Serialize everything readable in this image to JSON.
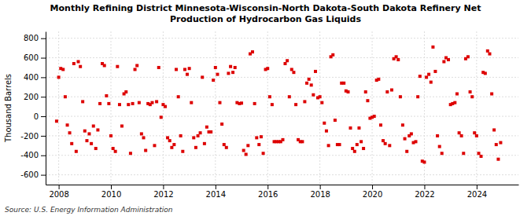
{
  "chart_data": {
    "type": "scatter",
    "title": "Monthly Refining District Minnesota-Wisconsin-North Dakota-South Dakota Refinery Net\nProduction of Hydrocarbon Gas Liquids",
    "ylabel": "Thousand Barrels",
    "source": "Source: U.S. Energy Information Administration",
    "color": "#dd0000",
    "marker": "square",
    "grid": true,
    "xlim": [
      2007.5,
      2025.6
    ],
    "xticks": [
      2008,
      2010,
      2012,
      2014,
      2016,
      2018,
      2020,
      2022,
      2024
    ],
    "ylim": [
      -700,
      870
    ],
    "yticks": [
      -600,
      -400,
      -200,
      0,
      200,
      400,
      600,
      800
    ],
    "x": [
      2007.92,
      2008.0,
      2008.08,
      2008.17,
      2008.25,
      2008.33,
      2008.42,
      2008.5,
      2008.58,
      2008.67,
      2008.75,
      2008.83,
      2008.92,
      2009.0,
      2009.08,
      2009.17,
      2009.25,
      2009.33,
      2009.42,
      2009.5,
      2009.58,
      2009.67,
      2009.75,
      2009.83,
      2009.92,
      2010.0,
      2010.08,
      2010.17,
      2010.25,
      2010.33,
      2010.42,
      2010.5,
      2010.58,
      2010.67,
      2010.75,
      2010.83,
      2010.92,
      2011.0,
      2011.08,
      2011.17,
      2011.25,
      2011.33,
      2011.42,
      2011.5,
      2011.58,
      2011.67,
      2011.75,
      2011.83,
      2011.92,
      2012.0,
      2012.08,
      2012.17,
      2012.25,
      2012.33,
      2012.42,
      2012.5,
      2012.58,
      2012.67,
      2012.75,
      2012.83,
      2012.92,
      2013.0,
      2013.08,
      2013.17,
      2013.25,
      2013.33,
      2013.42,
      2013.5,
      2013.58,
      2013.67,
      2013.75,
      2013.83,
      2013.92,
      2014.0,
      2014.08,
      2014.17,
      2014.25,
      2014.33,
      2014.42,
      2014.5,
      2014.58,
      2014.67,
      2014.75,
      2014.83,
      2014.92,
      2015.0,
      2015.08,
      2015.17,
      2015.25,
      2015.33,
      2015.42,
      2015.5,
      2015.58,
      2015.67,
      2015.75,
      2015.83,
      2015.92,
      2016.0,
      2016.08,
      2016.17,
      2016.25,
      2016.33,
      2016.42,
      2016.5,
      2016.58,
      2016.67,
      2016.75,
      2016.83,
      2016.92,
      2017.0,
      2017.08,
      2017.17,
      2017.25,
      2017.33,
      2017.42,
      2017.5,
      2017.58,
      2017.67,
      2017.75,
      2017.83,
      2017.92,
      2018.0,
      2018.08,
      2018.17,
      2018.25,
      2018.33,
      2018.42,
      2018.5,
      2018.58,
      2018.67,
      2018.75,
      2018.83,
      2018.92,
      2019.0,
      2019.08,
      2019.17,
      2019.25,
      2019.33,
      2019.42,
      2019.5,
      2019.58,
      2019.67,
      2019.75,
      2019.83,
      2019.92,
      2020.0,
      2020.08,
      2020.17,
      2020.25,
      2020.33,
      2020.42,
      2020.5,
      2020.58,
      2020.67,
      2020.75,
      2020.83,
      2020.92,
      2021.0,
      2021.08,
      2021.17,
      2021.25,
      2021.33,
      2021.42,
      2021.5,
      2021.58,
      2021.67,
      2021.75,
      2021.83,
      2021.92,
      2022.0,
      2022.08,
      2022.17,
      2022.25,
      2022.33,
      2022.42,
      2022.5,
      2022.58,
      2022.67,
      2022.75,
      2022.83,
      2022.92,
      2023.0,
      2023.08,
      2023.17,
      2023.25,
      2023.33,
      2023.42,
      2023.5,
      2023.58,
      2023.67,
      2023.75,
      2023.83,
      2023.92,
      2024.0,
      2024.08,
      2024.17,
      2024.25,
      2024.33,
      2024.42,
      2024.5,
      2024.58,
      2024.67,
      2024.75,
      2024.83,
      2024.92
    ],
    "values": [
      -50,
      400,
      490,
      480,
      200,
      -90,
      -170,
      -280,
      540,
      -360,
      560,
      510,
      150,
      -150,
      -250,
      -180,
      -280,
      -100,
      -330,
      -140,
      130,
      540,
      520,
      210,
      130,
      -200,
      -330,
      -360,
      510,
      120,
      -100,
      230,
      250,
      120,
      -380,
      130,
      480,
      520,
      140,
      -180,
      -220,
      -350,
      130,
      120,
      140,
      -300,
      150,
      500,
      -10,
      120,
      100,
      -220,
      -250,
      -320,
      -290,
      480,
      200,
      -200,
      -360,
      480,
      430,
      490,
      140,
      -220,
      -320,
      -200,
      -170,
      400,
      -280,
      -110,
      -160,
      -160,
      370,
      500,
      430,
      140,
      -80,
      -290,
      -320,
      440,
      510,
      450,
      500,
      140,
      130,
      135,
      -350,
      -390,
      -300,
      640,
      660,
      130,
      -220,
      -290,
      -210,
      -380,
      480,
      490,
      200,
      120,
      -260,
      -260,
      -260,
      -260,
      -240,
      540,
      570,
      200,
      480,
      450,
      120,
      -240,
      -260,
      -260,
      150,
      340,
      380,
      320,
      220,
      460,
      190,
      200,
      140,
      -70,
      -150,
      -300,
      610,
      630,
      -40,
      -290,
      -290,
      340,
      340,
      260,
      250,
      -120,
      -330,
      -360,
      -290,
      -120,
      -260,
      -330,
      250,
      160,
      -20,
      -10,
      0,
      370,
      380,
      -90,
      -250,
      -280,
      250,
      -300,
      270,
      590,
      610,
      580,
      200,
      -90,
      -230,
      -360,
      -200,
      -180,
      -270,
      -260,
      200,
      410,
      -460,
      -470,
      400,
      430,
      350,
      710,
      460,
      -200,
      -310,
      -380,
      560,
      600,
      580,
      120,
      130,
      140,
      230,
      -170,
      -200,
      -380,
      590,
      610,
      250,
      200,
      -170,
      -200,
      -380,
      -410,
      450,
      440,
      670,
      640,
      230,
      -140,
      -290,
      -440,
      -270
    ]
  }
}
